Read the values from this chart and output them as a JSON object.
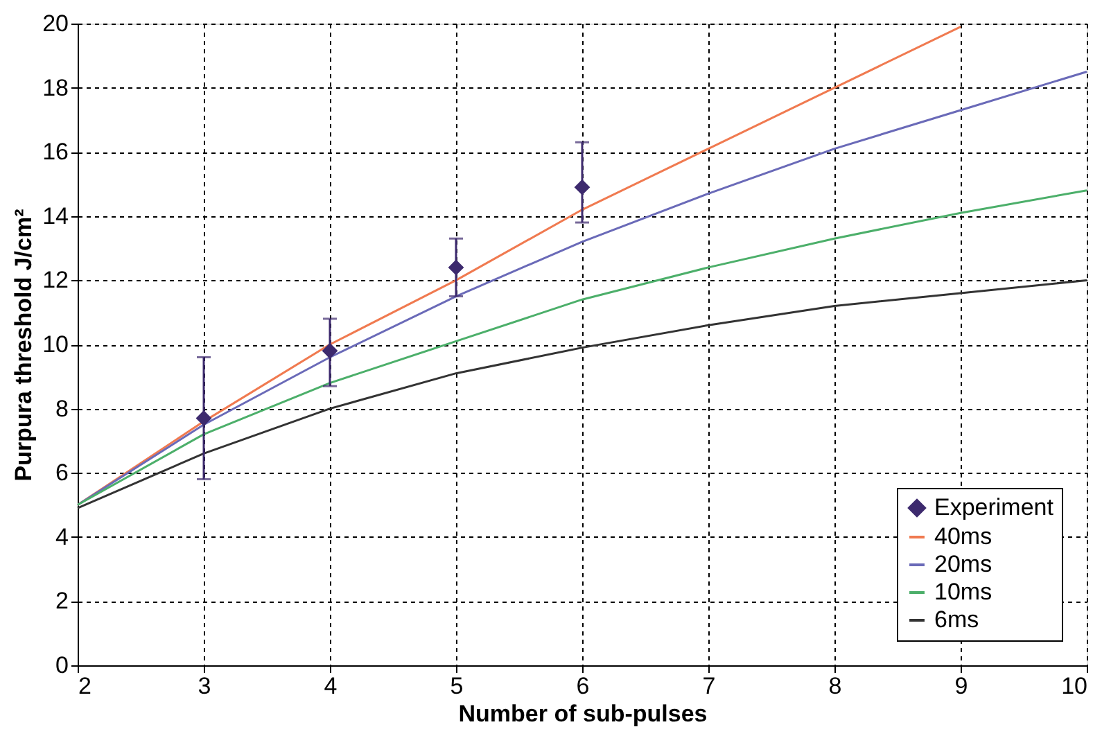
{
  "chart_data": {
    "type": "line",
    "xlabel": "Number of sub-pulses",
    "ylabel": "Purpura threshold J/cm²",
    "xlim": [
      2,
      10
    ],
    "xticks": [
      2,
      3,
      4,
      5,
      6,
      7,
      8,
      9,
      10
    ],
    "ylim": [
      0,
      20
    ],
    "yticks": [
      0,
      2,
      4,
      6,
      8,
      10,
      12,
      14,
      16,
      18,
      20
    ],
    "grid": true,
    "legend": "bottom right",
    "line_style": "solid",
    "series": [
      {
        "name": "Experiment",
        "type": "scatter",
        "marker": "diamond",
        "color": "#3d2a6e",
        "x": [
          3,
          4,
          5,
          6
        ],
        "values": [
          7.7,
          9.8,
          12.4,
          14.9
        ],
        "errors": [
          [
            5.8,
            9.6
          ],
          [
            8.7,
            10.8
          ],
          [
            11.5,
            13.3
          ],
          [
            13.8,
            16.3
          ]
        ]
      },
      {
        "name": "40ms",
        "color": "#f07a50",
        "x": [
          2,
          3,
          4,
          5,
          6,
          7,
          8,
          9
        ],
        "values": [
          5.0,
          7.6,
          10.0,
          12.0,
          14.2,
          16.1,
          18.0,
          19.9
        ]
      },
      {
        "name": "20ms",
        "color": "#6a6ab8",
        "x": [
          2,
          3,
          4,
          5,
          6,
          7,
          8,
          9,
          10
        ],
        "values": [
          5.0,
          7.5,
          9.6,
          11.5,
          13.2,
          14.7,
          16.1,
          17.3,
          18.5
        ]
      },
      {
        "name": "10ms",
        "color": "#4caf6a",
        "x": [
          2,
          3,
          4,
          5,
          6,
          7,
          8,
          9,
          10
        ],
        "values": [
          5.0,
          7.2,
          8.8,
          10.1,
          11.4,
          12.4,
          13.3,
          14.1,
          14.8
        ]
      },
      {
        "name": "6ms",
        "color": "#333333",
        "x": [
          2,
          3,
          4,
          5,
          6,
          7,
          8,
          9,
          10
        ],
        "values": [
          4.9,
          6.6,
          8.0,
          9.1,
          9.9,
          10.6,
          11.2,
          11.6,
          12.0
        ]
      }
    ]
  }
}
